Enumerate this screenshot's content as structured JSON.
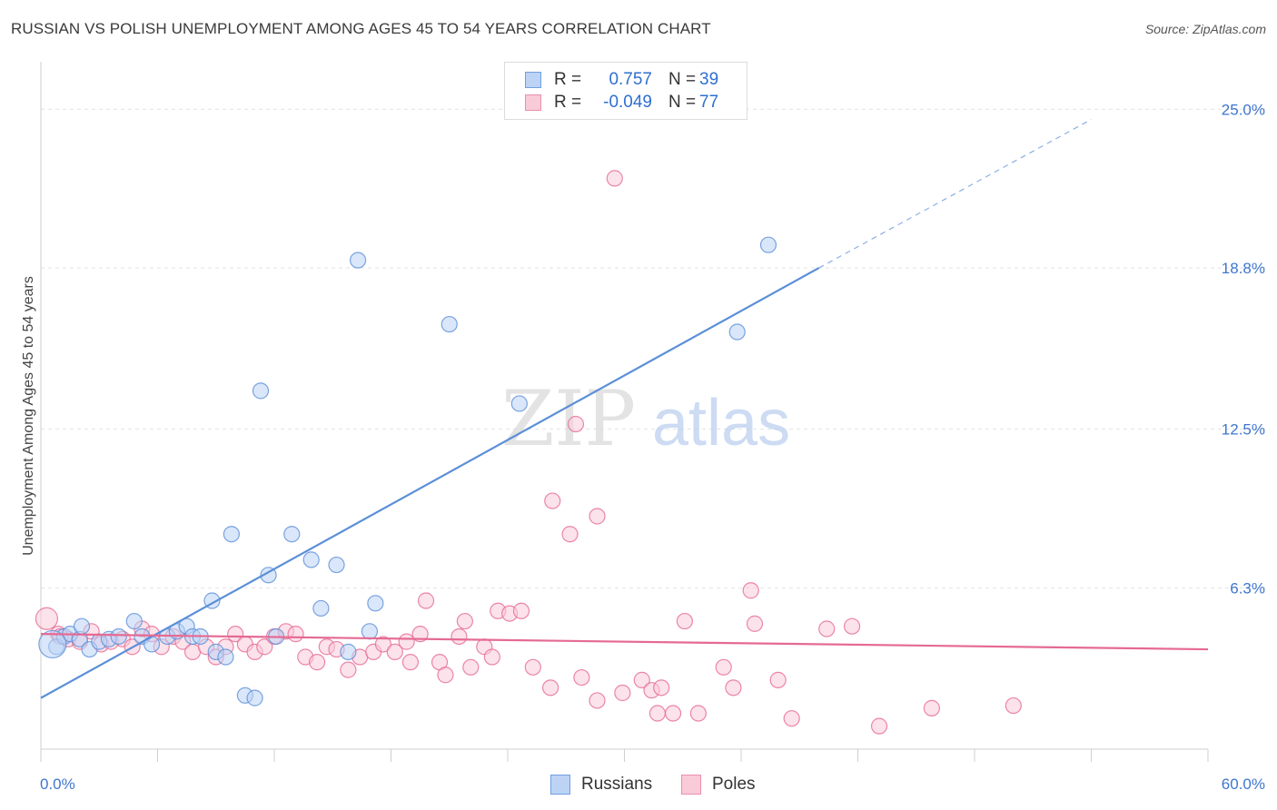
{
  "title": "RUSSIAN VS POLISH UNEMPLOYMENT AMONG AGES 45 TO 54 YEARS CORRELATION CHART",
  "source": "Source: ZipAtlas.com",
  "legend": {
    "rows": [
      {
        "r_label": "R =",
        "r_value": "0.757",
        "n_label": "N =",
        "n_value": "39",
        "color": "#6f9fe0",
        "fill": "#bcd3f5"
      },
      {
        "r_label": "R =",
        "r_value": "-0.049",
        "n_label": "N =",
        "n_value": "77",
        "color": "#ea8faf",
        "fill": "#f9cad8"
      }
    ]
  },
  "bottom_legend": [
    {
      "label": "Russians",
      "color": "#6f9fe0",
      "fill": "#bcd3f5"
    },
    {
      "label": "Poles",
      "color": "#ea8faf",
      "fill": "#f9cad8"
    }
  ],
  "watermark": {
    "zip": "ZIP",
    "atlas": "atlas"
  },
  "chart_data": {
    "type": "scatter",
    "title": "RUSSIAN VS POLISH UNEMPLOYMENT AMONG AGES 45 TO 54 YEARS CORRELATION CHART",
    "xlabel": "",
    "ylabel": "Unemployment Among Ages 45 to 54 years",
    "xlim": [
      0,
      60
    ],
    "ylim": [
      0,
      26.5
    ],
    "x_tick_labels": [
      "0.0%",
      "60.0%"
    ],
    "y_ticks": [
      6.3,
      12.5,
      18.8,
      25.0
    ],
    "y_tick_labels": [
      "6.3%",
      "12.5%",
      "18.8%",
      "25.0%"
    ],
    "grid": true,
    "series": [
      {
        "name": "Russians",
        "color": "#5b8fd8",
        "fill": "#bcd3f5",
        "points": [
          [
            0.8,
            4.0
          ],
          [
            1.2,
            4.4
          ],
          [
            1.5,
            4.5
          ],
          [
            2.0,
            4.3
          ],
          [
            2.1,
            4.8
          ],
          [
            2.5,
            3.9
          ],
          [
            3.0,
            4.2
          ],
          [
            3.5,
            4.3
          ],
          [
            4.0,
            4.4
          ],
          [
            4.8,
            5.0
          ],
          [
            5.2,
            4.4
          ],
          [
            5.7,
            4.1
          ],
          [
            6.5,
            4.4
          ],
          [
            7.0,
            4.6
          ],
          [
            7.5,
            4.8
          ],
          [
            7.8,
            4.4
          ],
          [
            8.2,
            4.4
          ],
          [
            8.8,
            5.8
          ],
          [
            9.0,
            3.8
          ],
          [
            9.5,
            3.6
          ],
          [
            9.8,
            8.4
          ],
          [
            10.5,
            2.1
          ],
          [
            11.0,
            2.0
          ],
          [
            11.3,
            14.0
          ],
          [
            11.7,
            6.8
          ],
          [
            12.1,
            4.4
          ],
          [
            12.9,
            8.4
          ],
          [
            13.9,
            7.4
          ],
          [
            14.4,
            5.5
          ],
          [
            15.2,
            7.2
          ],
          [
            15.8,
            3.8
          ],
          [
            16.3,
            19.1
          ],
          [
            16.9,
            4.6
          ],
          [
            17.2,
            5.7
          ],
          [
            21.0,
            16.6
          ],
          [
            24.6,
            13.5
          ],
          [
            35.8,
            16.3
          ],
          [
            37.4,
            19.7
          ],
          [
            0.6,
            4.1
          ]
        ],
        "trend": {
          "x": [
            0,
            40
          ],
          "y": [
            2.0,
            18.8
          ],
          "dashed_to": {
            "x": 54,
            "y": 24.6
          }
        }
      },
      {
        "name": "Poles",
        "color": "#e56a93",
        "fill": "#f9cad8",
        "points": [
          [
            0.3,
            5.1
          ],
          [
            0.9,
            4.5
          ],
          [
            1.4,
            4.3
          ],
          [
            2.0,
            4.2
          ],
          [
            2.6,
            4.6
          ],
          [
            3.1,
            4.1
          ],
          [
            3.6,
            4.2
          ],
          [
            4.2,
            4.3
          ],
          [
            4.7,
            4.0
          ],
          [
            5.2,
            4.7
          ],
          [
            5.7,
            4.5
          ],
          [
            6.2,
            4.0
          ],
          [
            6.8,
            4.4
          ],
          [
            7.3,
            4.2
          ],
          [
            7.8,
            3.8
          ],
          [
            8.5,
            4.0
          ],
          [
            9.0,
            3.6
          ],
          [
            9.5,
            4.0
          ],
          [
            10.0,
            4.5
          ],
          [
            10.5,
            4.1
          ],
          [
            11.0,
            3.8
          ],
          [
            11.5,
            4.0
          ],
          [
            12.0,
            4.4
          ],
          [
            12.6,
            4.6
          ],
          [
            13.1,
            4.5
          ],
          [
            13.6,
            3.6
          ],
          [
            14.2,
            3.4
          ],
          [
            14.7,
            4.0
          ],
          [
            15.2,
            3.9
          ],
          [
            15.8,
            3.1
          ],
          [
            16.4,
            3.6
          ],
          [
            17.1,
            3.8
          ],
          [
            17.6,
            4.1
          ],
          [
            18.2,
            3.8
          ],
          [
            18.8,
            4.2
          ],
          [
            19.0,
            3.4
          ],
          [
            19.5,
            4.5
          ],
          [
            19.8,
            5.8
          ],
          [
            20.5,
            3.4
          ],
          [
            20.8,
            2.9
          ],
          [
            21.5,
            4.4
          ],
          [
            21.8,
            5.0
          ],
          [
            22.1,
            3.2
          ],
          [
            22.8,
            4.0
          ],
          [
            23.2,
            3.6
          ],
          [
            23.5,
            5.4
          ],
          [
            24.1,
            5.3
          ],
          [
            24.7,
            5.4
          ],
          [
            25.3,
            3.2
          ],
          [
            26.2,
            2.4
          ],
          [
            26.3,
            9.7
          ],
          [
            27.2,
            8.4
          ],
          [
            27.5,
            12.7
          ],
          [
            27.8,
            2.8
          ],
          [
            28.6,
            9.1
          ],
          [
            28.6,
            1.9
          ],
          [
            29.5,
            22.3
          ],
          [
            29.9,
            2.2
          ],
          [
            30.9,
            2.7
          ],
          [
            31.4,
            2.3
          ],
          [
            31.9,
            2.4
          ],
          [
            31.7,
            1.4
          ],
          [
            32.5,
            1.4
          ],
          [
            33.1,
            5.0
          ],
          [
            33.8,
            1.4
          ],
          [
            35.1,
            3.2
          ],
          [
            35.6,
            2.4
          ],
          [
            36.5,
            6.2
          ],
          [
            36.7,
            4.9
          ],
          [
            37.9,
            2.7
          ],
          [
            38.6,
            1.2
          ],
          [
            40.4,
            4.7
          ],
          [
            41.7,
            4.8
          ],
          [
            43.1,
            0.9
          ],
          [
            45.8,
            1.6
          ],
          [
            50.0,
            1.7
          ],
          [
            1.0,
            4.4
          ]
        ],
        "trend": {
          "x": [
            0,
            60
          ],
          "y": [
            4.5,
            3.9
          ]
        }
      }
    ]
  }
}
